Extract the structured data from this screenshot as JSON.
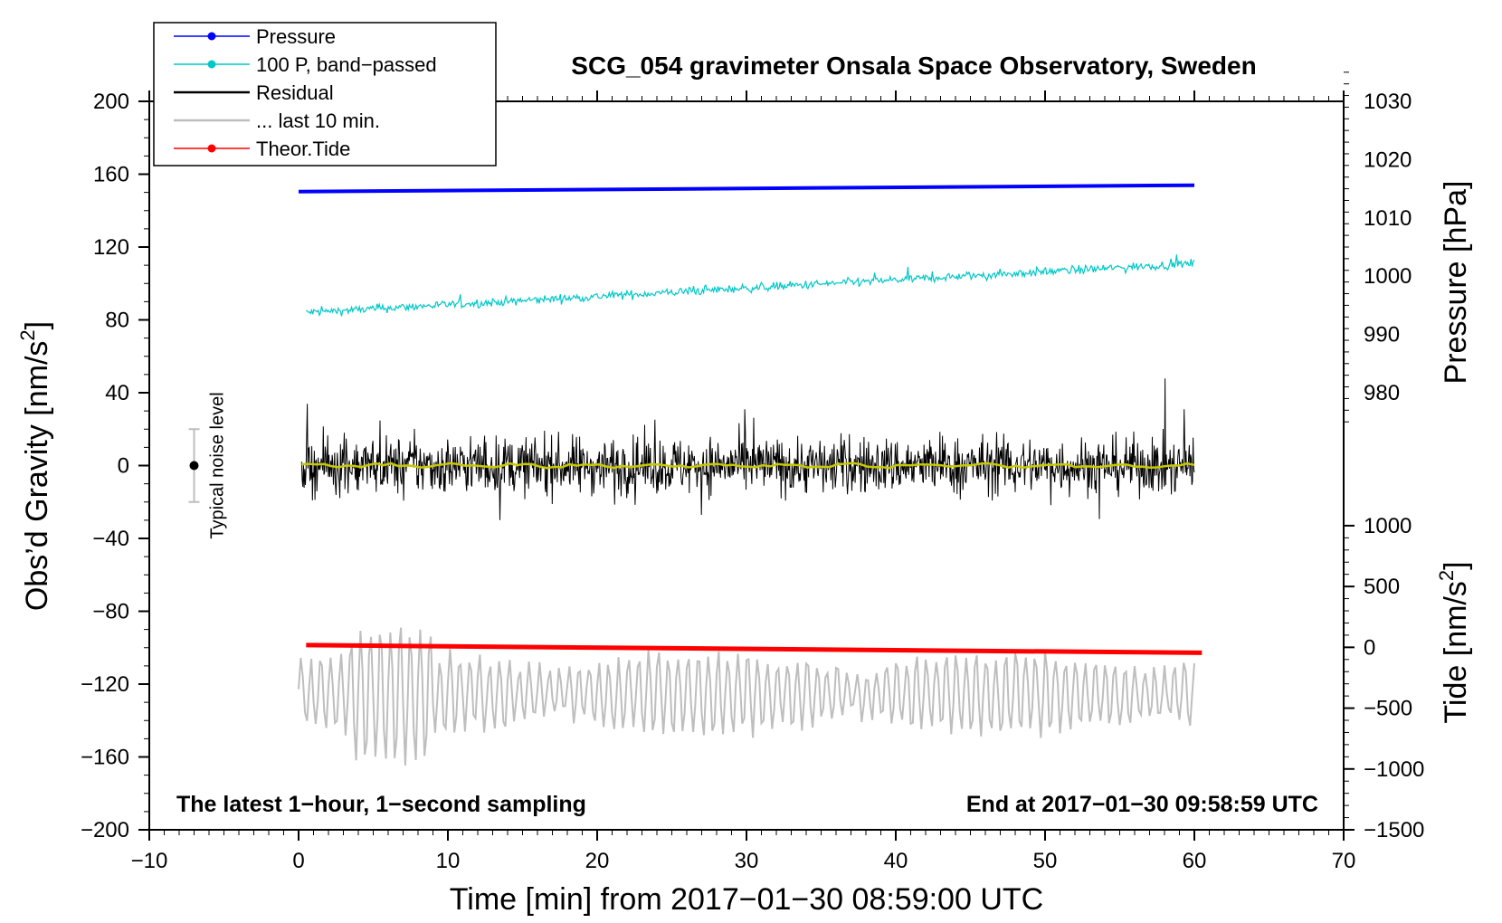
{
  "chart_data": {
    "type": "line",
    "title": "SCG_054 gravimeter Onsala Space Observatory, Sweden",
    "xlabel": "Time [min] from 2017−01−30 08:59:00 UTC",
    "ylabel_left": "Obs’d Gravity [nm/s",
    "ylabel_left_sup": "2",
    "ylabel_left_end": "]",
    "ylabel_pressure": "Pressure [hPa]",
    "ylabel_tide": "Tide [nm/s",
    "ylabel_tide_sup": "2",
    "ylabel_tide_end": "]",
    "xlim": [
      -10,
      70
    ],
    "ylim_left": [
      -200,
      200
    ],
    "pressure_range": [
      980,
      1030
    ],
    "pressure_anchor_left": [
      40,
      200
    ],
    "tide_range": [
      -1500,
      1000
    ],
    "tide_anchor_left": [
      -200,
      -33
    ],
    "x_ticks": [
      {
        "value": -10,
        "label": "−10"
      },
      {
        "value": 0,
        "label": "0"
      },
      {
        "value": 10,
        "label": "10"
      },
      {
        "value": 20,
        "label": "20"
      },
      {
        "value": 30,
        "label": "30"
      },
      {
        "value": 40,
        "label": "40"
      },
      {
        "value": 50,
        "label": "50"
      },
      {
        "value": 60,
        "label": "60"
      },
      {
        "value": 70,
        "label": "70"
      }
    ],
    "y_left_ticks": [
      {
        "value": 200,
        "label": "200"
      },
      {
        "value": 160,
        "label": "160"
      },
      {
        "value": 120,
        "label": "120"
      },
      {
        "value": 80,
        "label": "80"
      },
      {
        "value": 40,
        "label": "40"
      },
      {
        "value": 0,
        "label": "0"
      },
      {
        "value": -40,
        "label": "−40"
      },
      {
        "value": -80,
        "label": "−80"
      },
      {
        "value": -120,
        "label": "−120"
      },
      {
        "value": -160,
        "label": "−160"
      },
      {
        "value": -200,
        "label": "−200"
      }
    ],
    "y_pressure_ticks": [
      {
        "value": 1030,
        "label": "1030"
      },
      {
        "value": 1020,
        "label": "1020"
      },
      {
        "value": 1010,
        "label": "1010"
      },
      {
        "value": 1000,
        "label": "1000"
      },
      {
        "value": 990,
        "label": "990"
      },
      {
        "value": 980,
        "label": "980"
      }
    ],
    "y_tide_ticks": [
      {
        "value": 1000,
        "label": "1000"
      },
      {
        "value": 500,
        "label": "500"
      },
      {
        "value": 0,
        "label": "0"
      },
      {
        "value": -500,
        "label": "−500"
      },
      {
        "value": -1000,
        "label": "−1000"
      },
      {
        "value": -1500,
        "label": "−1500"
      }
    ],
    "series": [
      {
        "name": "Pressure",
        "color": "#0000ff",
        "axis": "pressure",
        "kind": "linear",
        "x_start": 0,
        "x_end": 60,
        "y_start": 1014.5,
        "y_end": 1015.6
      },
      {
        "name": "100 P, band−passed",
        "color": "#00c8c8",
        "axis": "left",
        "kind": "noisy",
        "x_start": 0.5,
        "x_end": 60,
        "y_start": 84,
        "y_end": 111,
        "noise": 3,
        "samples": 800
      },
      {
        "name": "Residual",
        "color": "#000000",
        "axis": "left",
        "kind": "noisy",
        "x_start": 0.2,
        "x_end": 60,
        "y_start": 0,
        "y_end": 0,
        "noise": 20,
        "samples": 1400
      },
      {
        "name": "... last 10 min.",
        "color": "#bebebe",
        "axis": "left",
        "kind": "oscillating",
        "x_start": 0,
        "x_end": 60,
        "y_center": -125,
        "amplitude": 22,
        "samples": 420
      },
      {
        "name": "Theor.Tide",
        "color": "#ff0000",
        "axis": "tide",
        "kind": "linear",
        "x_start": 0.5,
        "x_end": 60.5,
        "y_start": 18,
        "y_end": -45
      }
    ],
    "residual_mean_color": "#c8c800",
    "annotations": {
      "bottom_left": "The latest 1−hour, 1−second sampling",
      "bottom_right": "End at 2017−01−30 09:58:59 UTC",
      "noise_label": "Typical noise level"
    },
    "noise_bar": {
      "x": -7,
      "y_center": 0,
      "y_half": 20
    }
  }
}
